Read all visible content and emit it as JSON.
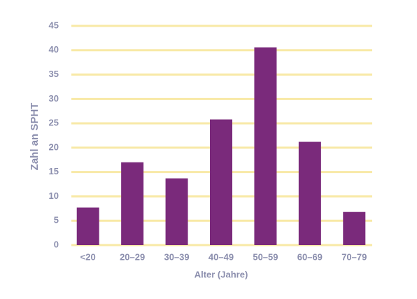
{
  "chart_data": {
    "type": "bar",
    "x_label": "Alter (Jahre)",
    "y_label": "Zahl an SPHT",
    "categories": [
      "<20",
      "20–29",
      "30–39",
      "40–49",
      "50–59",
      "60–69",
      "70–79"
    ],
    "values": [
      7.7,
      17,
      13.7,
      25.8,
      40.6,
      21.2,
      6.8
    ],
    "color": "#7a2a7b",
    "ylim": [
      0,
      45
    ],
    "yticks": [
      0,
      5,
      10,
      15,
      20,
      25,
      30,
      35,
      40,
      45
    ],
    "grid": true,
    "grid_color": "#f8e9a6"
  }
}
